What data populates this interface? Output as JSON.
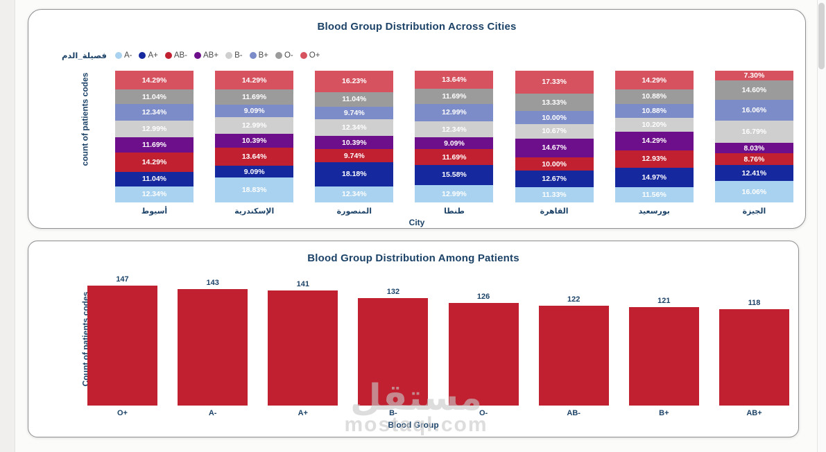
{
  "page": {
    "watermark_arabic": "مستقل",
    "watermark_latin": "mostaql.com"
  },
  "colors": {
    "title_navy": "#1c4267",
    "bottom_bar_red": "#c0202f",
    "card_border": "#8f8f8f"
  },
  "chart_data": [
    {
      "type": "bar",
      "variant": "stacked-100-percent",
      "title": "Blood Group Distribution Across Cities",
      "legend_title": "فصيلة_الدم",
      "xlabel": "City",
      "ylabel": "count of patients codes",
      "legend_position": "top-left",
      "categories": [
        "أسيوط",
        "الإسكندرية",
        "المنصورة",
        "طنطا",
        "القاهرة",
        "بورسعيد",
        "الجيزة"
      ],
      "series_note": "values are percentages per city; series listed bottom-to-top of each stacked column; legend shown in this same order",
      "series": [
        {
          "name": "A-",
          "color": "#a9d2f0",
          "values": [
            12.34,
            18.83,
            12.34,
            12.99,
            11.33,
            11.56,
            16.06
          ]
        },
        {
          "name": "A+",
          "color": "#16289e",
          "values": [
            11.04,
            9.09,
            18.18,
            15.58,
            12.67,
            14.97,
            12.41
          ]
        },
        {
          "name": "AB-",
          "color": "#c0202f",
          "values": [
            14.29,
            13.64,
            9.74,
            11.69,
            10.0,
            12.93,
            8.76
          ]
        },
        {
          "name": "AB+",
          "color": "#6d0e8a",
          "values": [
            11.69,
            10.39,
            10.39,
            9.09,
            14.67,
            14.29,
            8.03
          ]
        },
        {
          "name": "B-",
          "color": "#cfcfcf",
          "values": [
            12.99,
            12.99,
            12.34,
            12.34,
            10.67,
            10.2,
            16.79
          ]
        },
        {
          "name": "B+",
          "color": "#7c8cc9",
          "values": [
            12.34,
            9.09,
            9.74,
            12.99,
            10.0,
            10.88,
            16.06
          ]
        },
        {
          "name": "O-",
          "color": "#9b9b9b",
          "values": [
            11.04,
            11.69,
            11.04,
            11.69,
            13.33,
            10.88,
            14.6
          ]
        },
        {
          "name": "O+",
          "color": "#d6525f",
          "values": [
            14.29,
            14.29,
            16.23,
            13.64,
            17.33,
            14.29,
            7.3
          ]
        }
      ],
      "data_labels": "percent with 2 decimals, white, inside segments",
      "ylim": [
        0,
        100
      ]
    },
    {
      "type": "bar",
      "title": "Blood Group Distribution Among Patients",
      "xlabel": "Blood Group",
      "ylabel": "Count of patients codes",
      "categories": [
        "O+",
        "A-",
        "A+",
        "B-",
        "O-",
        "AB-",
        "B+",
        "AB+"
      ],
      "values": [
        147,
        143,
        141,
        132,
        126,
        122,
        121,
        118
      ],
      "bar_color": "#c0202f",
      "data_labels": "value above each bar, navy",
      "ylim": [
        0,
        150
      ],
      "grid": false
    }
  ]
}
